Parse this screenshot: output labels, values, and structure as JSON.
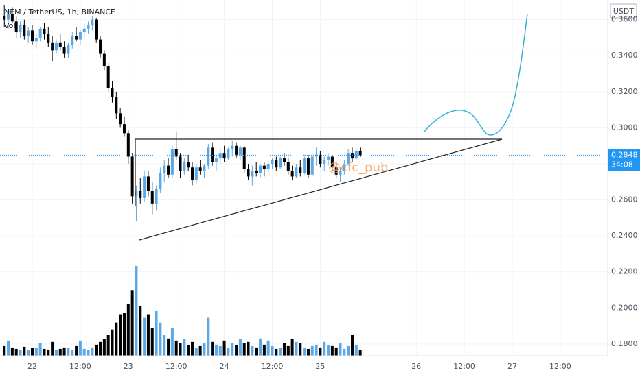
{
  "header": {
    "symbol": "NEM / TetherUS, 1h, BINANCE",
    "volume_label": "Vol",
    "currency": "USDT",
    "countdown": "34:08",
    "watermark": "@cfc_pub"
  },
  "chart_data": {
    "type": "candlestick",
    "x": [
      -7,
      -6,
      -5,
      -4,
      -3,
      -2,
      -1,
      0,
      1,
      2,
      3,
      4,
      5,
      6,
      7,
      8,
      9,
      10,
      11,
      12,
      13,
      14,
      15,
      16,
      17,
      18,
      19,
      20,
      21,
      22,
      23,
      24,
      25,
      26,
      27,
      28,
      29,
      30,
      31,
      32,
      33,
      34,
      35,
      36,
      37,
      38,
      39,
      40,
      41,
      42,
      43,
      44,
      45,
      46,
      47,
      48,
      49,
      50,
      51,
      52,
      53,
      54,
      55,
      56,
      57,
      58,
      59,
      60,
      61,
      62,
      63,
      64,
      65,
      66,
      67,
      68,
      69,
      70,
      71,
      72,
      73,
      74,
      75,
      76,
      77,
      78,
      79,
      80,
      81,
      82
    ],
    "candles": [
      [
        0.362,
        0.368,
        0.356,
        0.36
      ],
      [
        0.36,
        0.366,
        0.355,
        0.363
      ],
      [
        0.363,
        0.367,
        0.358,
        0.359
      ],
      [
        0.359,
        0.362,
        0.35,
        0.353
      ],
      [
        0.353,
        0.359,
        0.35,
        0.357
      ],
      [
        0.357,
        0.36,
        0.349,
        0.351
      ],
      [
        0.351,
        0.356,
        0.347,
        0.354
      ],
      [
        0.354,
        0.357,
        0.346,
        0.348
      ],
      [
        0.348,
        0.352,
        0.344,
        0.35
      ],
      [
        0.35,
        0.356,
        0.348,
        0.355
      ],
      [
        0.355,
        0.358,
        0.349,
        0.352
      ],
      [
        0.352,
        0.356,
        0.345,
        0.347
      ],
      [
        0.347,
        0.351,
        0.337,
        0.343
      ],
      [
        0.343,
        0.349,
        0.341,
        0.347
      ],
      [
        0.347,
        0.352,
        0.343,
        0.345
      ],
      [
        0.345,
        0.348,
        0.339,
        0.341
      ],
      [
        0.341,
        0.347,
        0.339,
        0.346
      ],
      [
        0.346,
        0.353,
        0.344,
        0.351
      ],
      [
        0.351,
        0.356,
        0.348,
        0.349
      ],
      [
        0.349,
        0.354,
        0.346,
        0.353
      ],
      [
        0.353,
        0.358,
        0.35,
        0.355
      ],
      [
        0.355,
        0.359,
        0.352,
        0.357
      ],
      [
        0.357,
        0.362,
        0.354,
        0.36
      ],
      [
        0.36,
        0.361,
        0.347,
        0.349
      ],
      [
        0.349,
        0.351,
        0.339,
        0.341
      ],
      [
        0.341,
        0.343,
        0.332,
        0.334
      ],
      [
        0.334,
        0.336,
        0.32,
        0.322
      ],
      [
        0.322,
        0.326,
        0.314,
        0.317
      ],
      [
        0.317,
        0.32,
        0.305,
        0.308
      ],
      [
        0.308,
        0.311,
        0.3,
        0.302
      ],
      [
        0.302,
        0.306,
        0.295,
        0.297
      ],
      [
        0.297,
        0.299,
        0.28,
        0.284
      ],
      [
        0.284,
        0.286,
        0.258,
        0.262
      ],
      [
        0.262,
        0.268,
        0.248,
        0.265
      ],
      [
        0.265,
        0.272,
        0.258,
        0.261
      ],
      [
        0.261,
        0.276,
        0.259,
        0.273
      ],
      [
        0.273,
        0.276,
        0.262,
        0.265
      ],
      [
        0.265,
        0.27,
        0.252,
        0.258
      ],
      [
        0.258,
        0.268,
        0.254,
        0.266
      ],
      [
        0.266,
        0.278,
        0.264,
        0.275
      ],
      [
        0.275,
        0.282,
        0.27,
        0.279
      ],
      [
        0.279,
        0.283,
        0.272,
        0.274
      ],
      [
        0.274,
        0.29,
        0.272,
        0.288
      ],
      [
        0.288,
        0.298,
        0.282,
        0.284
      ],
      [
        0.284,
        0.286,
        0.272,
        0.276
      ],
      [
        0.276,
        0.283,
        0.274,
        0.281
      ],
      [
        0.281,
        0.285,
        0.276,
        0.278
      ],
      [
        0.278,
        0.281,
        0.268,
        0.271
      ],
      [
        0.271,
        0.28,
        0.269,
        0.278
      ],
      [
        0.278,
        0.282,
        0.274,
        0.276
      ],
      [
        0.276,
        0.28,
        0.272,
        0.279
      ],
      [
        0.279,
        0.291,
        0.277,
        0.289
      ],
      [
        0.289,
        0.292,
        0.279,
        0.281
      ],
      [
        0.281,
        0.285,
        0.276,
        0.283
      ],
      [
        0.283,
        0.288,
        0.28,
        0.286
      ],
      [
        0.286,
        0.29,
        0.281,
        0.283
      ],
      [
        0.283,
        0.289,
        0.282,
        0.288
      ],
      [
        0.288,
        0.293,
        0.284,
        0.29
      ],
      [
        0.29,
        0.292,
        0.283,
        0.285
      ],
      [
        0.285,
        0.29,
        0.282,
        0.289
      ],
      [
        0.289,
        0.29,
        0.275,
        0.277
      ],
      [
        0.277,
        0.28,
        0.271,
        0.273
      ],
      [
        0.273,
        0.279,
        0.268,
        0.276
      ],
      [
        0.276,
        0.281,
        0.273,
        0.275
      ],
      [
        0.275,
        0.28,
        0.272,
        0.279
      ],
      [
        0.279,
        0.281,
        0.273,
        0.277
      ],
      [
        0.277,
        0.282,
        0.275,
        0.28
      ],
      [
        0.28,
        0.283,
        0.277,
        0.282
      ],
      [
        0.282,
        0.284,
        0.276,
        0.278
      ],
      [
        0.278,
        0.284,
        0.277,
        0.283
      ],
      [
        0.283,
        0.286,
        0.279,
        0.281
      ],
      [
        0.281,
        0.283,
        0.274,
        0.276
      ],
      [
        0.276,
        0.279,
        0.271,
        0.273
      ],
      [
        0.273,
        0.28,
        0.272,
        0.278
      ],
      [
        0.278,
        0.282,
        0.273,
        0.275
      ],
      [
        0.275,
        0.285,
        0.274,
        0.283
      ],
      [
        0.283,
        0.285,
        0.272,
        0.274
      ],
      [
        0.274,
        0.286,
        0.273,
        0.284
      ],
      [
        0.284,
        0.289,
        0.279,
        0.285
      ],
      [
        0.285,
        0.287,
        0.278,
        0.28
      ],
      [
        0.28,
        0.284,
        0.276,
        0.282
      ],
      [
        0.282,
        0.286,
        0.279,
        0.284
      ],
      [
        0.284,
        0.285,
        0.276,
        0.278
      ],
      [
        0.278,
        0.281,
        0.272,
        0.274
      ],
      [
        0.274,
        0.278,
        0.27,
        0.276
      ],
      [
        0.276,
        0.282,
        0.274,
        0.28
      ],
      [
        0.28,
        0.288,
        0.279,
        0.286
      ],
      [
        0.286,
        0.289,
        0.281,
        0.283
      ],
      [
        0.283,
        0.288,
        0.282,
        0.287
      ],
      [
        0.287,
        0.289,
        0.284,
        0.2848
      ]
    ],
    "volume": [
      14,
      22,
      12,
      10,
      8,
      13,
      9,
      11,
      12,
      18,
      10,
      9,
      20,
      8,
      10,
      12,
      11,
      9,
      14,
      22,
      10,
      8,
      12,
      16,
      20,
      24,
      30,
      38,
      48,
      60,
      62,
      75,
      95,
      130,
      72,
      55,
      60,
      40,
      65,
      48,
      30,
      25,
      40,
      22,
      18,
      24,
      15,
      20,
      12,
      14,
      18,
      55,
      20,
      16,
      14,
      22,
      12,
      18,
      15,
      24,
      18,
      20,
      14,
      12,
      25,
      16,
      22,
      14,
      10,
      12,
      18,
      14,
      24,
      20,
      18,
      12,
      10,
      14,
      16,
      12,
      20,
      15,
      14,
      12,
      18,
      10,
      14,
      30,
      16,
      8
    ],
    "up_color": "#5ba8e6",
    "down_color": "#000000",
    "last_price": 0.2848,
    "ylim": [
      0.1735,
      0.3709
    ],
    "yticks": [
      {
        "value": 0.18,
        "label": "0.1800"
      },
      {
        "value": 0.2,
        "label": "0.2000"
      },
      {
        "value": 0.22,
        "label": "0.2200"
      },
      {
        "value": 0.24,
        "label": "0.2400"
      },
      {
        "value": 0.26,
        "label": "0.2600"
      },
      {
        "value": 0.28,
        "label": "0.2800"
      },
      {
        "value": 0.3,
        "label": "0.3000"
      },
      {
        "value": 0.32,
        "label": "0.3200"
      },
      {
        "value": 0.34,
        "label": "0.3400"
      },
      {
        "value": 0.36,
        "label": "0.3600"
      }
    ],
    "xticks": [
      {
        "value": 0,
        "label": "22"
      },
      {
        "value": 12,
        "label": "12:00"
      },
      {
        "value": 24,
        "label": "23"
      },
      {
        "value": 36,
        "label": "12:00"
      },
      {
        "value": 48,
        "label": "24"
      },
      {
        "value": 60,
        "label": "12:00"
      },
      {
        "value": 72,
        "label": "25"
      },
      {
        "value": 96,
        "label": "26"
      },
      {
        "value": 108,
        "label": "12:00"
      },
      {
        "value": 120,
        "label": "27"
      },
      {
        "value": 132,
        "label": "12:00"
      }
    ],
    "grid": true
  }
}
